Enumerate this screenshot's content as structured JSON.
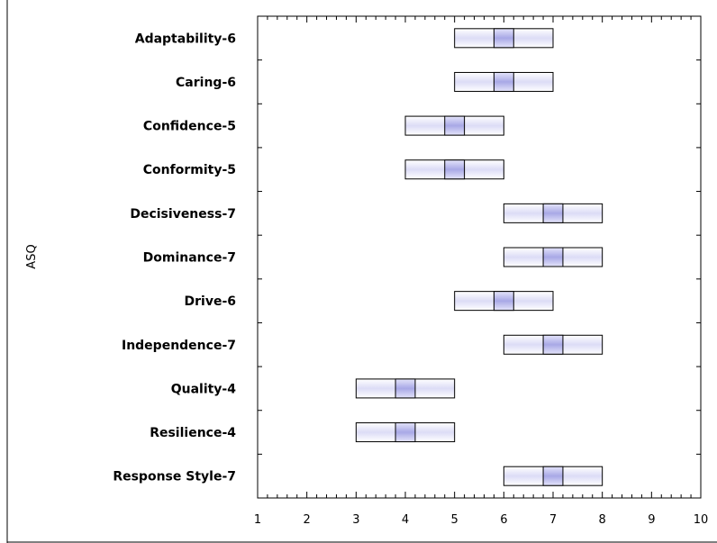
{
  "chart_data": {
    "type": "box",
    "orientation": "horizontal",
    "ylabel": "ASQ",
    "xlabel": "",
    "xlim": [
      1,
      10
    ],
    "xticks": [
      "1",
      "2",
      "3",
      "4",
      "5",
      "6",
      "7",
      "8",
      "9",
      "10"
    ],
    "grid": false,
    "colors": {
      "box_fill": "#e8e8f8",
      "box_center": "#b8b8ea",
      "box_stroke": "#000000"
    },
    "categories": [
      {
        "label": "Adaptability-6",
        "low": 5,
        "mid_low": 5.8,
        "mid_high": 6.2,
        "high": 7
      },
      {
        "label": "Caring-6",
        "low": 5,
        "mid_low": 5.8,
        "mid_high": 6.2,
        "high": 7
      },
      {
        "label": "Confidence-5",
        "low": 4,
        "mid_low": 4.8,
        "mid_high": 5.2,
        "high": 6
      },
      {
        "label": "Conformity-5",
        "low": 4,
        "mid_low": 4.8,
        "mid_high": 5.2,
        "high": 6
      },
      {
        "label": "Decisiveness-7",
        "low": 6,
        "mid_low": 6.8,
        "mid_high": 7.2,
        "high": 8
      },
      {
        "label": "Dominance-7",
        "low": 6,
        "mid_low": 6.8,
        "mid_high": 7.2,
        "high": 8
      },
      {
        "label": "Drive-6",
        "low": 5,
        "mid_low": 5.8,
        "mid_high": 6.2,
        "high": 7
      },
      {
        "label": "Independence-7",
        "low": 6,
        "mid_low": 6.8,
        "mid_high": 7.2,
        "high": 8
      },
      {
        "label": "Quality-4",
        "low": 3,
        "mid_low": 3.8,
        "mid_high": 4.2,
        "high": 5
      },
      {
        "label": "Resilience-4",
        "low": 3,
        "mid_low": 3.8,
        "mid_high": 4.2,
        "high": 5
      },
      {
        "label": "Response Style-7",
        "low": 6,
        "mid_low": 6.8,
        "mid_high": 7.2,
        "high": 8
      }
    ]
  }
}
